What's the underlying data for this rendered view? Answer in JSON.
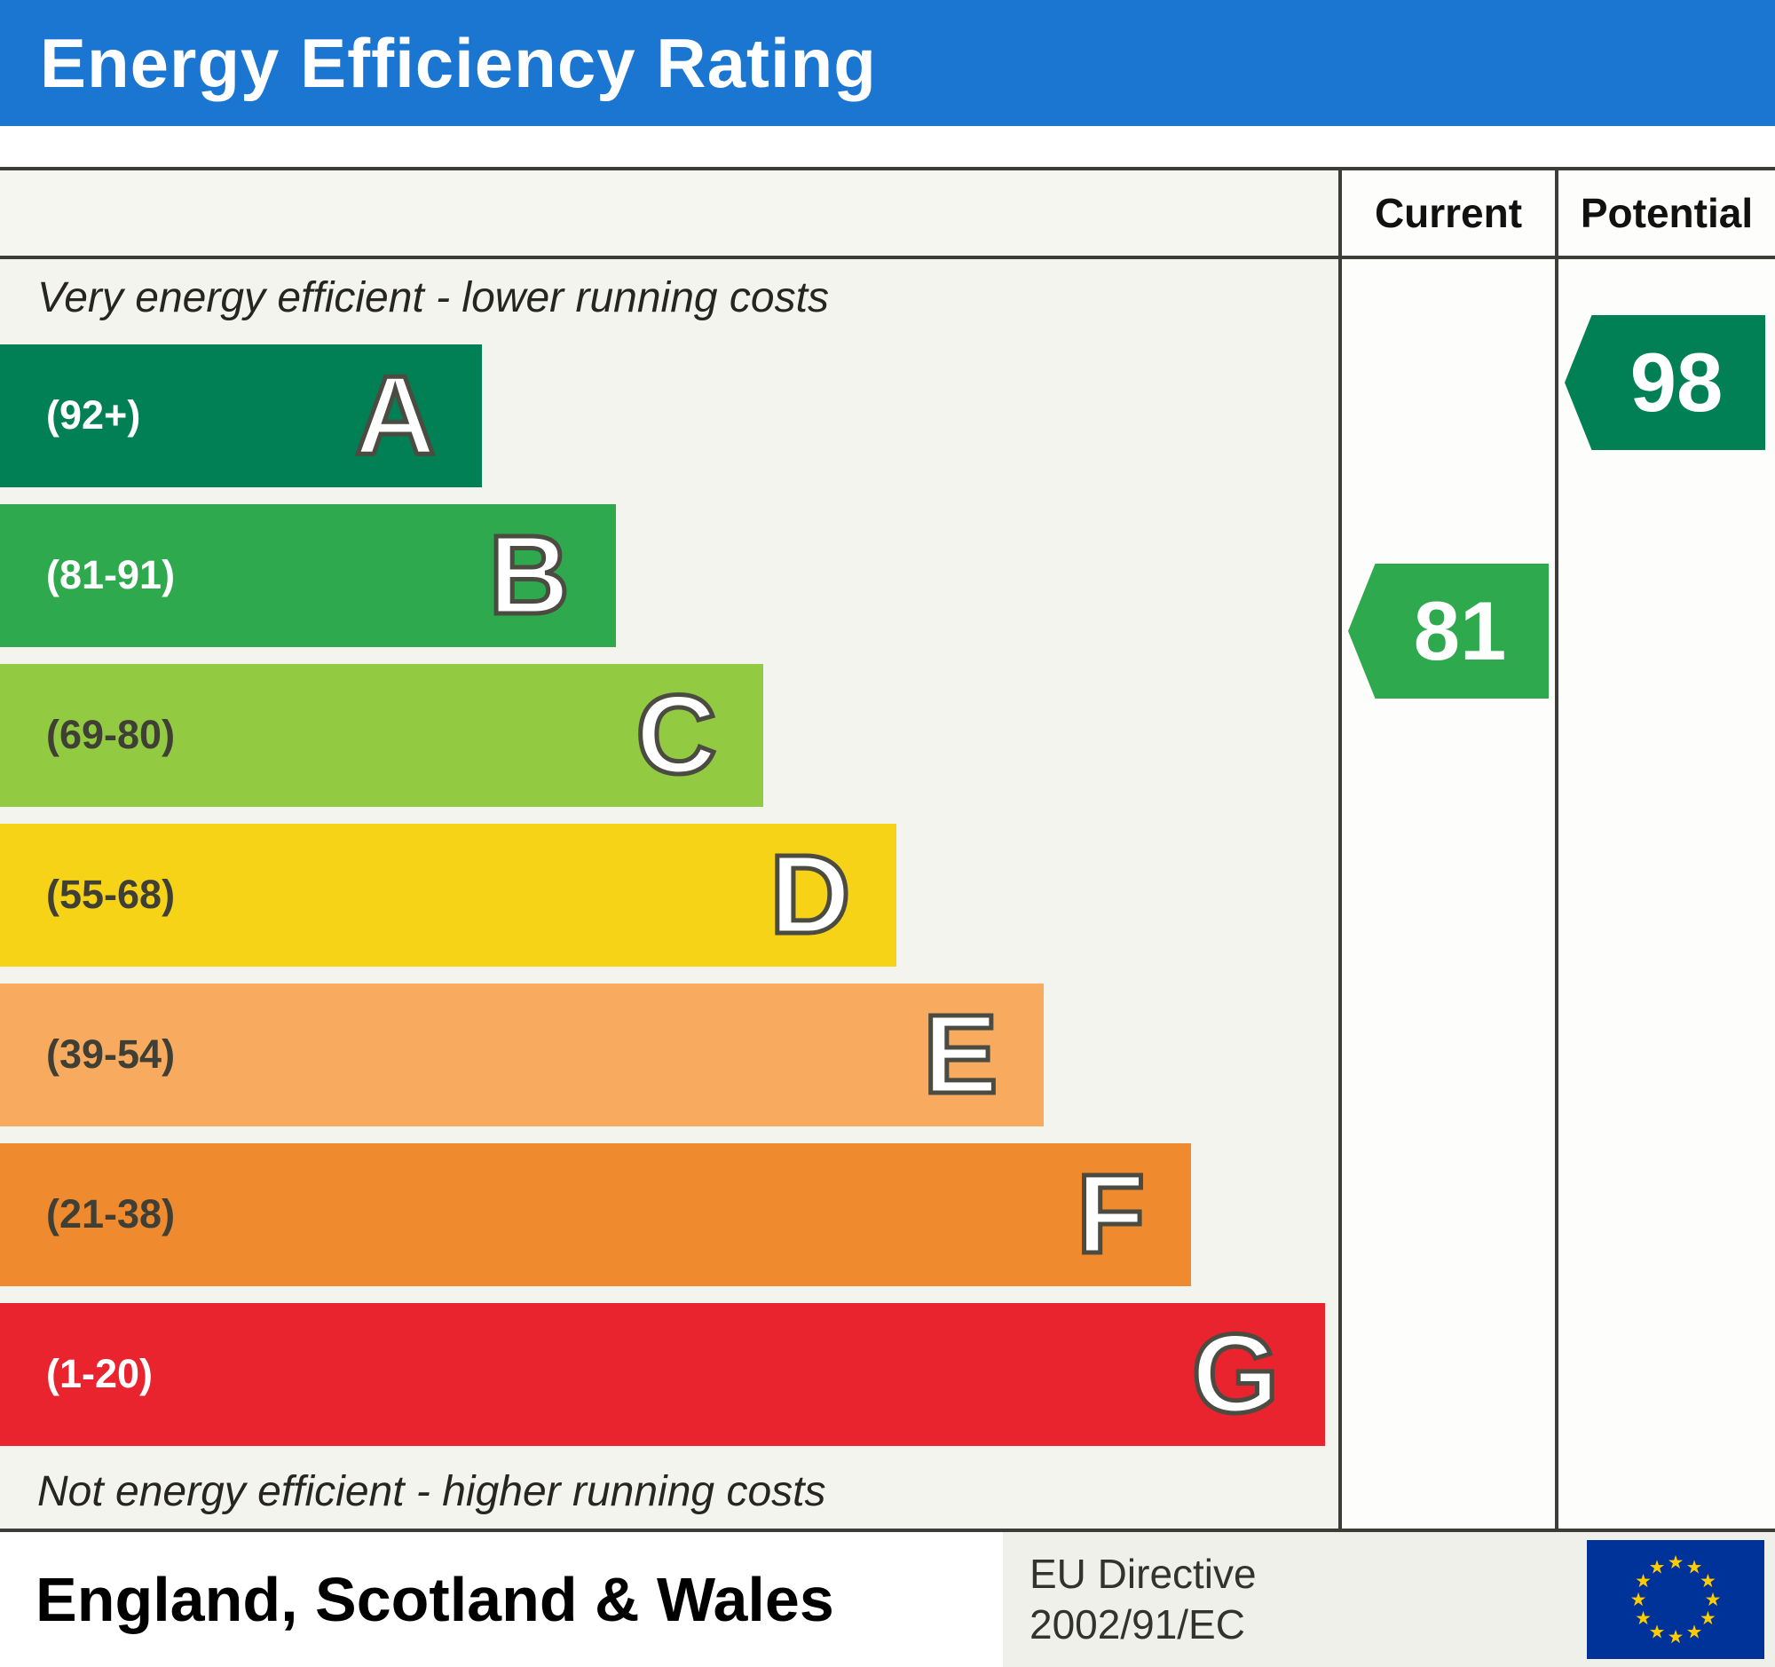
{
  "title": "Energy Efficiency Rating",
  "columns": {
    "current": "Current",
    "potential": "Potential"
  },
  "scale": {
    "top_label": "Very energy efficient - lower running costs",
    "bottom_label": "Not energy efficient - higher running costs"
  },
  "bands": [
    {
      "letter": "A",
      "range": "(92+)",
      "color": "#008054",
      "label_color": "#ffffff",
      "width_pct": 36
    },
    {
      "letter": "B",
      "range": "(81-91)",
      "color": "#2ea94e",
      "label_color": "#ffffff",
      "width_pct": 46
    },
    {
      "letter": "C",
      "range": "(69-80)",
      "color": "#92ca42",
      "label_color": "#3f3f35",
      "width_pct": 57
    },
    {
      "letter": "D",
      "range": "(55-68)",
      "color": "#f6d317",
      "label_color": "#3f3f35",
      "width_pct": 67
    },
    {
      "letter": "E",
      "range": "(39-54)",
      "color": "#f8ab5e",
      "label_color": "#3f3f35",
      "width_pct": 78
    },
    {
      "letter": "F",
      "range": "(21-38)",
      "color": "#ef8b2e",
      "label_color": "#3f3f35",
      "width_pct": 89
    },
    {
      "letter": "G",
      "range": "(1-20)",
      "color": "#e9242e",
      "label_color": "#ffffff",
      "width_pct": 99
    }
  ],
  "ratings": {
    "current": {
      "value": "81",
      "color": "#2ea94e",
      "band": "B"
    },
    "potential": {
      "value": "98",
      "color": "#008054",
      "band": "A"
    }
  },
  "footer": {
    "region": "England, Scotland & Wales",
    "directive_line1": "EU Directive",
    "directive_line2": "2002/91/EC",
    "star_glyph": "★"
  },
  "colors": {
    "header_bg": "#1b76d2",
    "border": "#3c3c38",
    "flag_bg": "#003399",
    "flag_star": "#ffcc00"
  },
  "chart_data": {
    "type": "bar",
    "title": "Energy Efficiency Rating",
    "categories": [
      "A (92+)",
      "B (81-91)",
      "C (69-80)",
      "D (55-68)",
      "E (39-54)",
      "F (21-38)",
      "G (1-20)"
    ],
    "values": [
      36,
      46,
      57,
      67,
      78,
      89,
      99
    ],
    "value_note": "relative band bar length as % of scale width",
    "series": [
      {
        "name": "Current",
        "value": 81,
        "band": "B"
      },
      {
        "name": "Potential",
        "value": 98,
        "band": "A"
      }
    ],
    "annotations": [
      "Very energy efficient - lower running costs",
      "Not energy efficient - higher running costs"
    ],
    "legend_position": "none",
    "grid": false
  }
}
